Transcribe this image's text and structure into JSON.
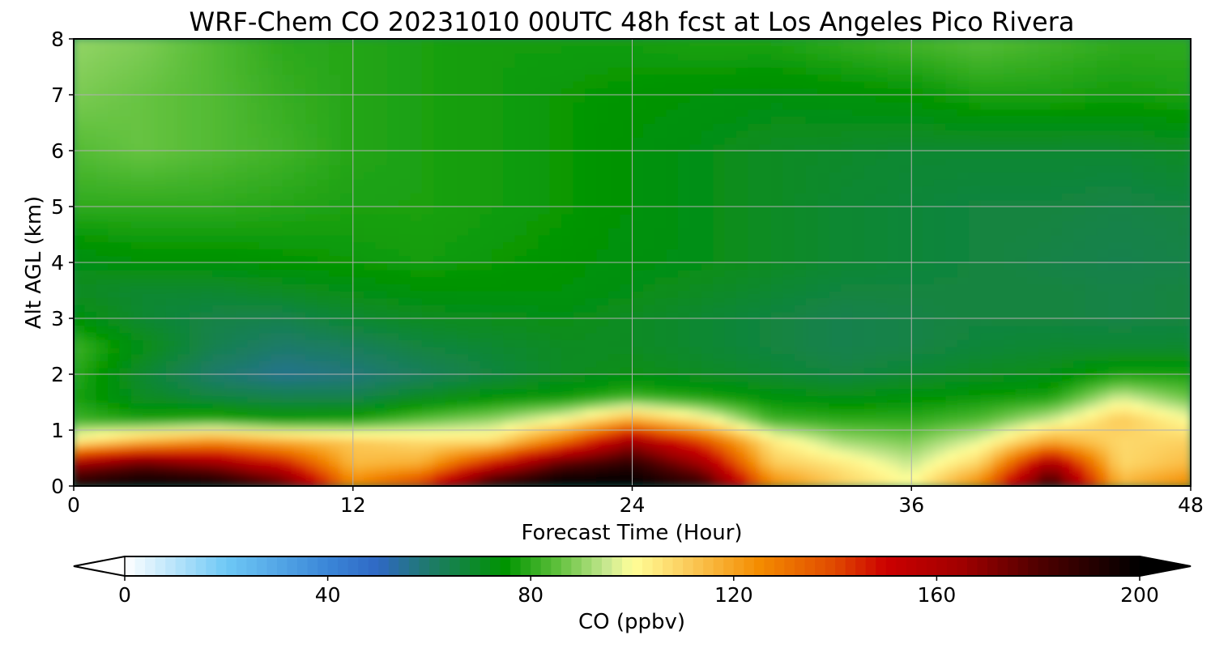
{
  "chart_data": {
    "type": "heatmap",
    "title": "WRF-Chem CO  20231010 00UTC 48h fcst at Los Angeles Pico Rivera",
    "xlabel": "Forecast Time (Hour)",
    "ylabel": "Alt AGL (km)",
    "xlim": [
      0,
      48
    ],
    "ylim": [
      0,
      8
    ],
    "xticks": [
      0,
      12,
      24,
      36,
      48
    ],
    "yticks": [
      0,
      1,
      2,
      3,
      4,
      5,
      6,
      7,
      8
    ],
    "grid": true,
    "x": [
      0,
      3,
      6,
      9,
      12,
      15,
      18,
      21,
      24,
      27,
      30,
      33,
      36,
      39,
      42,
      45,
      48
    ],
    "y": [
      0.1,
      0.4,
      0.8,
      1.2,
      1.6,
      2.0,
      2.5,
      3.0,
      3.5,
      4.0,
      5.0,
      6.0,
      7.0,
      7.9
    ],
    "values": [
      [
        190,
        198,
        195,
        175,
        125,
        140,
        185,
        200,
        200,
        185,
        125,
        110,
        100,
        125,
        185,
        115,
        125
      ],
      [
        165,
        178,
        168,
        150,
        115,
        118,
        150,
        180,
        190,
        165,
        112,
        105,
        95,
        110,
        165,
        108,
        115
      ],
      [
        105,
        118,
        125,
        118,
        112,
        108,
        108,
        132,
        165,
        140,
        105,
        92,
        88,
        98,
        120,
        108,
        110
      ],
      [
        82,
        78,
        80,
        76,
        78,
        85,
        90,
        100,
        118,
        104,
        82,
        80,
        80,
        84,
        95,
        112,
        100
      ],
      [
        78,
        70,
        66,
        64,
        64,
        70,
        74,
        76,
        82,
        78,
        74,
        72,
        74,
        76,
        78,
        96,
        86
      ],
      [
        80,
        68,
        60,
        56,
        58,
        62,
        66,
        70,
        72,
        70,
        68,
        66,
        68,
        70,
        72,
        78,
        78
      ],
      [
        82,
        72,
        64,
        60,
        62,
        66,
        68,
        70,
        70,
        68,
        66,
        64,
        65,
        67,
        68,
        68,
        68
      ],
      [
        74,
        68,
        65,
        64,
        68,
        70,
        71,
        72,
        70,
        68,
        66,
        64,
        65,
        66,
        66,
        65,
        66
      ],
      [
        70,
        68,
        68,
        70,
        72,
        74,
        74,
        74,
        72,
        70,
        68,
        66,
        66,
        66,
        66,
        65,
        66
      ],
      [
        72,
        74,
        74,
        75,
        76,
        77,
        76,
        75,
        73,
        72,
        70,
        68,
        67,
        66,
        65,
        64,
        65
      ],
      [
        80,
        80,
        80,
        79,
        78,
        78,
        77,
        76,
        74,
        72,
        70,
        68,
        67,
        66,
        66,
        65,
        66
      ],
      [
        84,
        86,
        84,
        82,
        79,
        78,
        77,
        76,
        74,
        72,
        70,
        69,
        68,
        68,
        68,
        68,
        70
      ],
      [
        88,
        86,
        84,
        81,
        79,
        78,
        77,
        76,
        75,
        74,
        73,
        74,
        75,
        78,
        78,
        77,
        78
      ],
      [
        90,
        88,
        84,
        80,
        79,
        78,
        77,
        77,
        77,
        78,
        78,
        80,
        82,
        84,
        82,
        80,
        80
      ]
    ],
    "colorbar": {
      "label": "CO  (ppbv)",
      "min": 0,
      "max": 200,
      "ticks": [
        0,
        40,
        80,
        120,
        160,
        200
      ],
      "extend": "both",
      "orientation": "horizontal",
      "placement": "bottom",
      "colormap": [
        [
          0,
          "#ffffff"
        ],
        [
          20,
          "#6ec8f5"
        ],
        [
          40,
          "#3a86d8"
        ],
        [
          50,
          "#2f68c4"
        ],
        [
          60,
          "#1e7a6a"
        ],
        [
          75,
          "#009400"
        ],
        [
          85,
          "#5cbf3a"
        ],
        [
          95,
          "#c8e890"
        ],
        [
          100,
          "#ffff99"
        ],
        [
          110,
          "#fcd060"
        ],
        [
          125,
          "#f48c00"
        ],
        [
          140,
          "#e04800"
        ],
        [
          150,
          "#cc0000"
        ],
        [
          165,
          "#a00000"
        ],
        [
          180,
          "#500000"
        ],
        [
          200,
          "#000000"
        ]
      ],
      "under_color": "#ffffff",
      "over_color": "#000000"
    }
  }
}
